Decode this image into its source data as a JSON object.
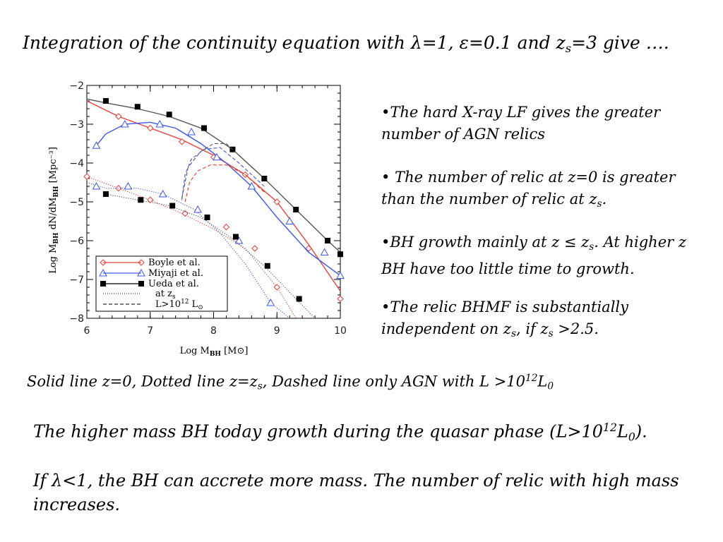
{
  "title": {
    "prefix": "Integration of the continuity equation with ",
    "lambda": "λ",
    "lambda_val": "=1, ",
    "eps": "ε",
    "eps_val": "=0.1 and ",
    "z": "z",
    "z_sub": "s",
    "z_val": "=3 give …."
  },
  "bullets": {
    "b1": {
      "text": "•The hard X-ray LF gives the greater number of AGN relics"
    },
    "b2": {
      "text": "•  The number of relic at z=0 is greater than the number of relic at ",
      "z": "z",
      "z_sub": "s",
      "tail": "."
    },
    "b3": {
      "pre": "•BH growth mainly at z ≤ ",
      "z": "z",
      "z_sub": "s",
      "mid": ". At higher z BH have too little time to growth."
    },
    "b4": {
      "pre": "•The relic BHMF is substantially independent on ",
      "z1": "z",
      "z1_sub": "s",
      "mid": ", if ",
      "z2": "z",
      "z2_sub": "s",
      "tail": " >2.5."
    }
  },
  "legend_line": {
    "pre": "Solid line   z=0, Dotted line z=",
    "z": "z",
    "z_sub": "s",
    "mid": ", Dashed line only AGN with L >10",
    "sup": "12",
    "L": "L",
    "L_sub": "0"
  },
  "p1": {
    "pre": "The higher mass BH today growth during the quasar phase (L>10",
    "sup": "12",
    "L": "L",
    "L_sub": "0",
    "tail": ")."
  },
  "p2": {
    "pre": "If ",
    "lambda": "λ",
    "tail": "<1, the BH can  accrete more mass. The number of relic with high mass increases."
  },
  "chart_data": {
    "type": "line",
    "xlabel": "Log M",
    "xlabel_sub": "BH",
    "xlabel_unit": " [M⊙]",
    "ylabel": "Log M",
    "ylabel_sub": "BH",
    "ylabel_mid": " dN/dM",
    "ylabel_sub2": "BH",
    "ylabel_unit": " [Mpc⁻³]",
    "xlim": [
      6,
      10
    ],
    "ylim": [
      -8,
      -2
    ],
    "xticks": [
      "6",
      "7",
      "8",
      "9",
      "10"
    ],
    "yticks": [
      "−2",
      "−3",
      "−4",
      "−5",
      "−6",
      "−7",
      "−8"
    ],
    "xtick_values": [
      6,
      7,
      8,
      9,
      10
    ],
    "ytick_values": [
      -2,
      -3,
      -4,
      -5,
      -6,
      -7,
      -8
    ],
    "legend": {
      "position": "bottom-left",
      "entries": [
        "Boyle et al.",
        "Miyaji et al.",
        "Ueda et al.",
        "at z",
        "L>10"
      ],
      "z_sub": "s",
      "lum_sup": "12",
      "lum_unit": " L",
      "lum_sub": "⊙"
    },
    "series": [
      {
        "name": "Boyle et al.",
        "style": "solid",
        "color": "#e8413c",
        "marker": "diamond",
        "x": [
          6.0,
          6.5,
          7.0,
          7.5,
          8.0,
          8.5,
          9.0,
          9.5,
          10.0
        ],
        "y": [
          -2.4,
          -2.8,
          -3.1,
          -3.4,
          -3.8,
          -4.3,
          -5.0,
          -6.1,
          -7.3
        ],
        "mx": [
          6.5,
          7.0,
          7.5,
          8.0,
          8.5,
          9.0,
          9.5,
          10.0
        ],
        "my": [
          -2.8,
          -3.1,
          -3.45,
          -3.85,
          -4.3,
          -5.0,
          -6.2,
          -7.5
        ]
      },
      {
        "name": "Miyaji et al.",
        "style": "solid",
        "color": "#3d56e8",
        "marker": "triangle",
        "x": [
          6.15,
          6.3,
          6.6,
          7.0,
          7.4,
          7.8,
          8.2,
          8.6,
          9.0,
          9.5,
          10.0
        ],
        "y": [
          -3.55,
          -3.25,
          -3.0,
          -2.95,
          -3.1,
          -3.5,
          -4.0,
          -4.6,
          -5.4,
          -6.3,
          -6.9
        ],
        "mx": [
          6.15,
          6.6,
          7.15,
          7.65,
          8.05,
          8.6,
          9.2,
          9.75,
          10.0
        ],
        "my": [
          -3.55,
          -3.0,
          -3.0,
          -3.2,
          -3.85,
          -4.6,
          -5.5,
          -6.3,
          -6.9
        ]
      },
      {
        "name": "Ueda et al.",
        "style": "solid",
        "color": "#555555",
        "marker": "square",
        "x": [
          6.0,
          6.3,
          6.8,
          7.3,
          7.8,
          8.3,
          8.8,
          9.3,
          9.8,
          10.0
        ],
        "y": [
          -2.35,
          -2.45,
          -2.6,
          -2.8,
          -3.1,
          -3.65,
          -4.4,
          -5.2,
          -6.0,
          -6.3
        ],
        "mx": [
          6.3,
          6.8,
          7.3,
          7.85,
          8.3,
          8.8,
          9.3,
          9.8,
          10.0
        ],
        "my": [
          -2.4,
          -2.55,
          -2.75,
          -3.1,
          -3.65,
          -4.4,
          -5.2,
          -6.0,
          -6.35
        ]
      },
      {
        "name": "Boyle et al.",
        "style": "dotted",
        "color": "#e8413c",
        "marker": "diamond",
        "x": [
          6.0,
          6.5,
          7.0,
          7.5,
          8.0,
          8.5,
          9.0,
          9.3
        ],
        "y": [
          -4.35,
          -4.65,
          -4.95,
          -5.3,
          -5.7,
          -6.2,
          -7.2,
          -8.0
        ],
        "mx": [
          6.0,
          6.5,
          7.0,
          7.55,
          8.2,
          8.65,
          9.0
        ],
        "my": [
          -4.35,
          -4.65,
          -4.95,
          -5.3,
          -5.65,
          -6.2,
          -7.2
        ]
      },
      {
        "name": "Miyaji et al.",
        "style": "dotted",
        "color": "#3d56e8",
        "marker": "triangle",
        "x": [
          6.0,
          6.3,
          6.8,
          7.2,
          7.7,
          8.1,
          8.5,
          8.9,
          9.2
        ],
        "y": [
          -4.5,
          -4.65,
          -4.65,
          -4.8,
          -5.2,
          -5.8,
          -6.6,
          -7.6,
          -8.0
        ],
        "mx": [
          6.15,
          6.65,
          7.2,
          7.75,
          8.4,
          8.9
        ],
        "my": [
          -4.6,
          -4.6,
          -4.8,
          -5.2,
          -6.0,
          -7.6
        ]
      },
      {
        "name": "Ueda et al.",
        "style": "dotted",
        "color": "#555555",
        "marker": "square",
        "x": [
          6.3,
          6.8,
          7.3,
          7.8,
          8.3,
          8.8,
          9.3,
          9.6
        ],
        "y": [
          -4.8,
          -4.95,
          -5.1,
          -5.4,
          -5.95,
          -6.65,
          -7.5,
          -8.0
        ],
        "mx": [
          6.3,
          6.85,
          7.35,
          7.9,
          8.35,
          8.85,
          9.35
        ],
        "my": [
          -4.8,
          -4.95,
          -5.1,
          -5.4,
          -5.9,
          -6.65,
          -7.5
        ]
      },
      {
        "name": "Boyle et al.",
        "style": "dashed",
        "color": "#e8413c",
        "marker": "none",
        "x": [
          7.55,
          7.62,
          7.75,
          7.95,
          8.2,
          8.5,
          8.8
        ],
        "y": [
          -5.0,
          -4.5,
          -4.2,
          -4.05,
          -4.05,
          -4.3,
          -4.75
        ],
        "mx": [],
        "my": []
      },
      {
        "name": "Miyaji et al.",
        "style": "dashed",
        "color": "#3d56e8",
        "marker": "none",
        "x": [
          7.5,
          7.55,
          7.65,
          7.85,
          8.1,
          8.4,
          8.8
        ],
        "y": [
          -4.95,
          -4.3,
          -3.9,
          -3.65,
          -3.6,
          -4.0,
          -4.6
        ],
        "mx": [],
        "my": []
      },
      {
        "name": "Ueda et al.",
        "style": "dashed",
        "color": "#555555",
        "marker": "none",
        "x": [
          7.5,
          7.6,
          7.8,
          8.0,
          8.2,
          8.5,
          8.8
        ],
        "y": [
          -4.9,
          -4.1,
          -3.7,
          -3.5,
          -3.5,
          -3.95,
          -4.4
        ],
        "mx": [],
        "my": []
      }
    ]
  }
}
